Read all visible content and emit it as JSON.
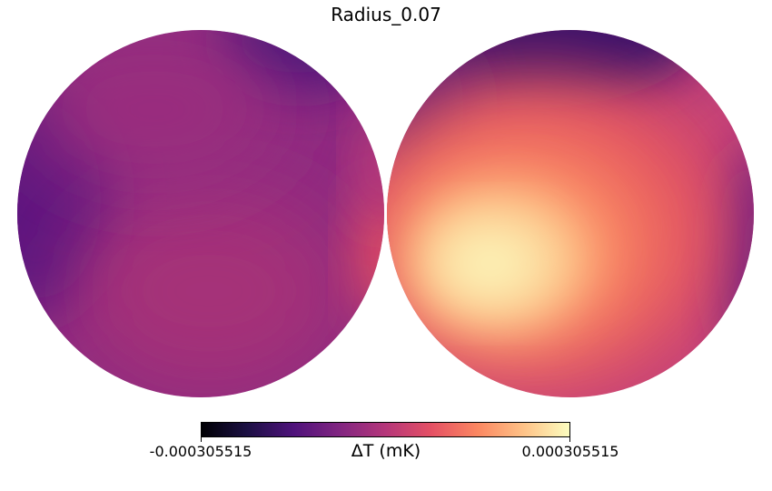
{
  "chart_data": {
    "type": "heatmap",
    "projection": "orthographic (two hemispheres)",
    "title": "Radius_0.07",
    "colormap": "magma",
    "colorbar": {
      "min": -0.000305515,
      "max": 0.000305515,
      "min_label": "-0.000305515",
      "max_label": "0.000305515",
      "unit_label": "ΔT (mK)"
    },
    "hemispheres": [
      {
        "name": "left",
        "description_values": "mostly near-zero to slightly negative (purple/magenta), darkest toward west limb, slight positive glow at east limb",
        "extremes": [
          {
            "feature": "coldest-region",
            "value": -0.00018
          },
          {
            "feature": "warmest-region",
            "value": 0.00012
          }
        ]
      },
      {
        "name": "right",
        "description_values": "strong positive hotspot in lower-left interior, negative band along upper-left limb",
        "extremes": [
          {
            "feature": "hotspot-peak",
            "value": 0.000305515
          },
          {
            "feature": "cold-limb",
            "value": -0.0002
          }
        ]
      }
    ]
  },
  "colors": {
    "magma_stops": [
      "#000004",
      "#1c1044",
      "#4f127b",
      "#812581",
      "#b5367a",
      "#e55064",
      "#fb8761",
      "#fec287",
      "#fcfdbf"
    ]
  }
}
